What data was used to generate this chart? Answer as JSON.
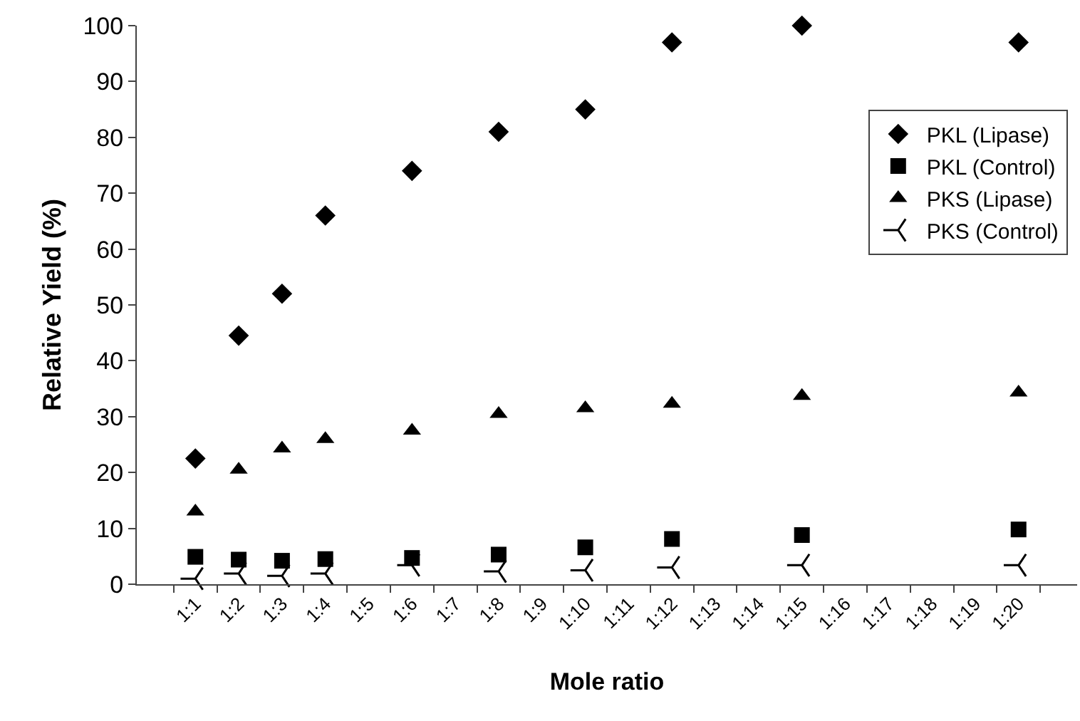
{
  "chart_data": {
    "type": "scatter",
    "xlabel": "Mole ratio",
    "ylabel": "Relative Yield (%)",
    "categories": [
      "1:1",
      "1:2",
      "1:3",
      "1:4",
      "1:5",
      "1:6",
      "1:7",
      "1:8",
      "1:9",
      "1:10",
      "1:11",
      "1:12",
      "1:13",
      "1:14",
      "1:15",
      "1:16",
      "1:17",
      "1:18",
      "1:19",
      "1:20"
    ],
    "series": [
      {
        "name": "PKL (Lipase)",
        "color": "#000000",
        "marker": "diamond",
        "x": [
          "1:1",
          "1:2",
          "1:3",
          "1:4",
          "1:6",
          "1:8",
          "1:10",
          "1:12",
          "1:15",
          "1:20"
        ],
        "values": [
          22.5,
          44.5,
          52,
          66,
          74,
          81,
          85,
          97,
          100,
          97
        ]
      },
      {
        "name": "PKL (Control)",
        "color": "#000000",
        "marker": "square",
        "x": [
          "1:1",
          "1:2",
          "1:3",
          "1:4",
          "1:6",
          "1:8",
          "1:10",
          "1:12",
          "1:15",
          "1:20"
        ],
        "values": [
          4.9,
          4.4,
          4.2,
          4.5,
          4.7,
          5.3,
          6.6,
          8.1,
          8.8,
          9.8
        ]
      },
      {
        "name": "PKS (Lipase)",
        "color": "#000000",
        "marker": "triangle",
        "x": [
          "1:1",
          "1:2",
          "1:3",
          "1:4",
          "1:6",
          "1:8",
          "1:10",
          "1:12",
          "1:15",
          "1:20"
        ],
        "values": [
          13,
          20.5,
          24.3,
          26,
          27.5,
          30.5,
          31.5,
          32.3,
          33.7,
          34.3
        ]
      },
      {
        "name": "PKS (Control)",
        "color": "#000000",
        "marker": "cross",
        "x": [
          "1:1",
          "1:2",
          "1:3",
          "1:4",
          "1:6",
          "1:8",
          "1:10",
          "1:12",
          "1:15",
          "1:20"
        ],
        "values": [
          1,
          1.9,
          1.5,
          1.9,
          3.4,
          2.3,
          2.5,
          3,
          3.4,
          3.4
        ]
      }
    ],
    "ylim": [
      0,
      100
    ],
    "yticks": [
      0,
      10,
      20,
      30,
      40,
      50,
      60,
      70,
      80,
      90,
      100
    ],
    "grid": false,
    "legend": "right"
  }
}
